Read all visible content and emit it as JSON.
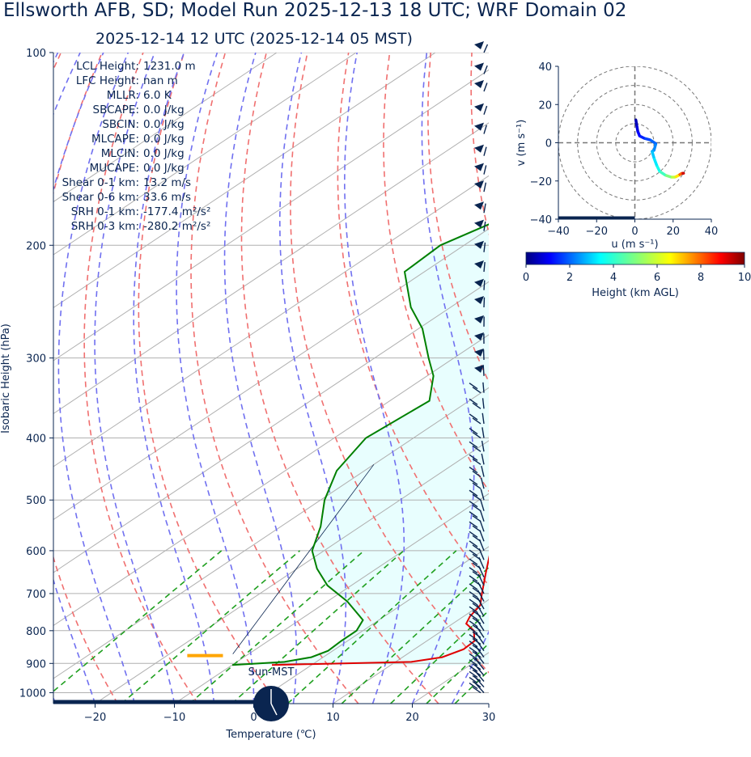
{
  "title": "Ellsworth AFB, SD; Model Run 2025-12-13 18 UTC; WRF Domain 02",
  "subtitle": "2025-12-14 12 UTC  (2025-12-14 05 MST)",
  "colors": {
    "text": "#0a2550",
    "temperature": "#e00000",
    "dewpoint": "#008000",
    "dry_adiabat": "#f07070",
    "moist_adiabat": "#7070f0",
    "mixing_ratio": "#20a020",
    "cape_fill": "#e8fefe",
    "lcl_marker": "#ffa500",
    "barb": "#0a2550"
  },
  "chart_data": [
    {
      "type": "line",
      "name": "skew-t",
      "xlabel": "Temperature (℃)",
      "ylabel": "Isobaric Height (hPa)",
      "xlim": [
        -25,
        30
      ],
      "ylim": [
        1040,
        100
      ],
      "y_scale": "log",
      "x_ticks": [
        "−20",
        "−10",
        "0",
        "10",
        "20",
        "30"
      ],
      "x_tick_values": [
        -20,
        -10,
        0,
        10,
        20,
        30
      ],
      "y_ticks": [
        "100",
        "200",
        "300",
        "400",
        "500",
        "600",
        "700",
        "800",
        "900",
        "1000"
      ],
      "y_tick_values": [
        100,
        200,
        300,
        400,
        500,
        600,
        700,
        800,
        900,
        1000
      ],
      "temperature_profile": [
        {
          "p": 905,
          "t": -5.0
        },
        {
          "p": 895,
          "t": 12.0
        },
        {
          "p": 880,
          "t": 15.0
        },
        {
          "p": 855,
          "t": 16.2
        },
        {
          "p": 830,
          "t": 16.0
        },
        {
          "p": 800,
          "t": 14.0
        },
        {
          "p": 780,
          "t": 11.7
        },
        {
          "p": 760,
          "t": 10.8
        },
        {
          "p": 730,
          "t": 10.0
        },
        {
          "p": 700,
          "t": 8.0
        },
        {
          "p": 650,
          "t": 4.6
        },
        {
          "p": 600,
          "t": 1.0
        },
        {
          "p": 550,
          "t": -3.0
        },
        {
          "p": 500,
          "t": -7.5
        },
        {
          "p": 450,
          "t": -12.2
        },
        {
          "p": 400,
          "t": -17.5
        },
        {
          "p": 350,
          "t": -22.5
        },
        {
          "p": 300,
          "t": -27.0
        },
        {
          "p": 270,
          "t": -31.5
        },
        {
          "p": 250,
          "t": -36.5
        },
        {
          "p": 220,
          "t": -42.0
        },
        {
          "p": 200,
          "t": -45.2
        },
        {
          "p": 185,
          "t": -46.0
        },
        {
          "p": 160,
          "t": -48.3
        },
        {
          "p": 140,
          "t": -51.0
        },
        {
          "p": 120,
          "t": -54.0
        },
        {
          "p": 100,
          "t": -54.0
        }
      ],
      "dewpoint_profile": [
        {
          "p": 905,
          "t": -10.0
        },
        {
          "p": 895,
          "t": -4.0
        },
        {
          "p": 880,
          "t": -1.5
        },
        {
          "p": 860,
          "t": -0.6
        },
        {
          "p": 830,
          "t": -0.8
        },
        {
          "p": 800,
          "t": -0.8
        },
        {
          "p": 770,
          "t": -2.0
        },
        {
          "p": 720,
          "t": -7.5
        },
        {
          "p": 680,
          "t": -13.0
        },
        {
          "p": 640,
          "t": -17.5
        },
        {
          "p": 600,
          "t": -21.5
        },
        {
          "p": 550,
          "t": -25.0
        },
        {
          "p": 500,
          "t": -29.5
        },
        {
          "p": 450,
          "t": -33.5
        },
        {
          "p": 400,
          "t": -36.0
        },
        {
          "p": 350,
          "t": -35.0
        },
        {
          "p": 320,
          "t": -39.2
        },
        {
          "p": 300,
          "t": -43.2
        },
        {
          "p": 270,
          "t": -49.5
        },
        {
          "p": 250,
          "t": -55.0
        },
        {
          "p": 220,
          "t": -62.5
        },
        {
          "p": 200,
          "t": -63.0
        },
        {
          "p": 180,
          "t": -60.0
        },
        {
          "p": 160,
          "t": -61.5
        },
        {
          "p": 140,
          "t": -64.5
        },
        {
          "p": 120,
          "t": -68.0
        },
        {
          "p": 100,
          "t": -70.0
        }
      ],
      "lcl_marker": {
        "p": 875,
        "t_range": [
          -8.5,
          -4.0
        ]
      },
      "stats": [
        {
          "label": "LCL Height:",
          "value": "1231.0 m"
        },
        {
          "label": "LFC Height:",
          "value": "nan m"
        },
        {
          "label": "MLLR:",
          "value": "6.0 K"
        },
        {
          "label": "SBCAPE:",
          "value": "0.0 J/kg"
        },
        {
          "label": "SBCIN:",
          "value": "0.0 J/kg"
        },
        {
          "label": "MLCAPE:",
          "value": "0.0 J/kg"
        },
        {
          "label": "MLCIN:",
          "value": "0.0 J/kg"
        },
        {
          "label": "MUCAPE:",
          "value": "0.0 J/kg"
        },
        {
          "label": "Shear 0-1 km:",
          "value": "13.2 m/s"
        },
        {
          "label": "Shear 0-6 km:",
          "value": "33.6 m/s"
        },
        {
          "label": "SRH 0-1 km:",
          "value": "-177.4 m²/s²"
        },
        {
          "label": "SRH 0-3 km:",
          "value": "-280.2 m²/s²"
        }
      ],
      "sun_label": "Sun-MST",
      "wind_barb_pressures": [
        100,
        108,
        115,
        125,
        134,
        145,
        155,
        165,
        178,
        190,
        205,
        220,
        235,
        250,
        268,
        285,
        302,
        320,
        340,
        360,
        380,
        400,
        420,
        440,
        460,
        480,
        500,
        520,
        540,
        560,
        580,
        600,
        620,
        640,
        660,
        680,
        700,
        720,
        740,
        760,
        780,
        800,
        820,
        840,
        860,
        880,
        900,
        920,
        940,
        960,
        980,
        1000
      ]
    },
    {
      "type": "scatter",
      "name": "hodograph",
      "xlabel": "u (m s⁻¹)",
      "ylabel": "v (m s⁻¹)",
      "xlim": [
        -40,
        40
      ],
      "ylim": [
        -40,
        40
      ],
      "x_ticks": [
        "−40",
        "−20",
        "0",
        "20",
        "40"
      ],
      "x_tick_values": [
        -40,
        -20,
        0,
        20,
        40
      ],
      "y_ticks": [
        "40",
        "20",
        "0",
        "−20",
        "−40"
      ],
      "y_tick_values": [
        40,
        20,
        0,
        -20,
        -40
      ],
      "rings": [
        10,
        20,
        30,
        40
      ],
      "points": [
        {
          "u": 0.5,
          "v": 12,
          "h": 0.2
        },
        {
          "u": 1,
          "v": 9,
          "h": 0.5
        },
        {
          "u": 1.5,
          "v": 6,
          "h": 0.8
        },
        {
          "u": 2.5,
          "v": 3.5,
          "h": 1.1
        },
        {
          "u": 5,
          "v": 2.3,
          "h": 1.4
        },
        {
          "u": 8,
          "v": 1.5,
          "h": 1.7
        },
        {
          "u": 11,
          "v": -0.5,
          "h": 2.0
        },
        {
          "u": 10,
          "v": -4,
          "h": 2.3
        },
        {
          "u": 9,
          "v": -4.5,
          "h": 2.6
        },
        {
          "u": 10,
          "v": -8,
          "h": 2.9
        },
        {
          "u": 11.5,
          "v": -12,
          "h": 3.2
        },
        {
          "u": 13,
          "v": -15,
          "h": 3.6
        },
        {
          "u": 16,
          "v": -17,
          "h": 4.2
        },
        {
          "u": 19,
          "v": -18,
          "h": 5.0
        },
        {
          "u": 21,
          "v": -18,
          "h": 5.8
        },
        {
          "u": 23,
          "v": -17,
          "h": 6.8
        },
        {
          "u": 24.5,
          "v": -16,
          "h": 8.0
        },
        {
          "u": 25.5,
          "v": -16,
          "h": 9.3
        }
      ]
    },
    {
      "type": "heatmap",
      "name": "colorbar",
      "xlabel": "Height (km AGL)",
      "range": [
        0,
        10
      ],
      "ticks": [
        "0",
        "2",
        "4",
        "6",
        "8",
        "10"
      ],
      "tick_values": [
        0,
        2,
        4,
        6,
        8,
        10
      ],
      "colormap": "jet"
    }
  ]
}
